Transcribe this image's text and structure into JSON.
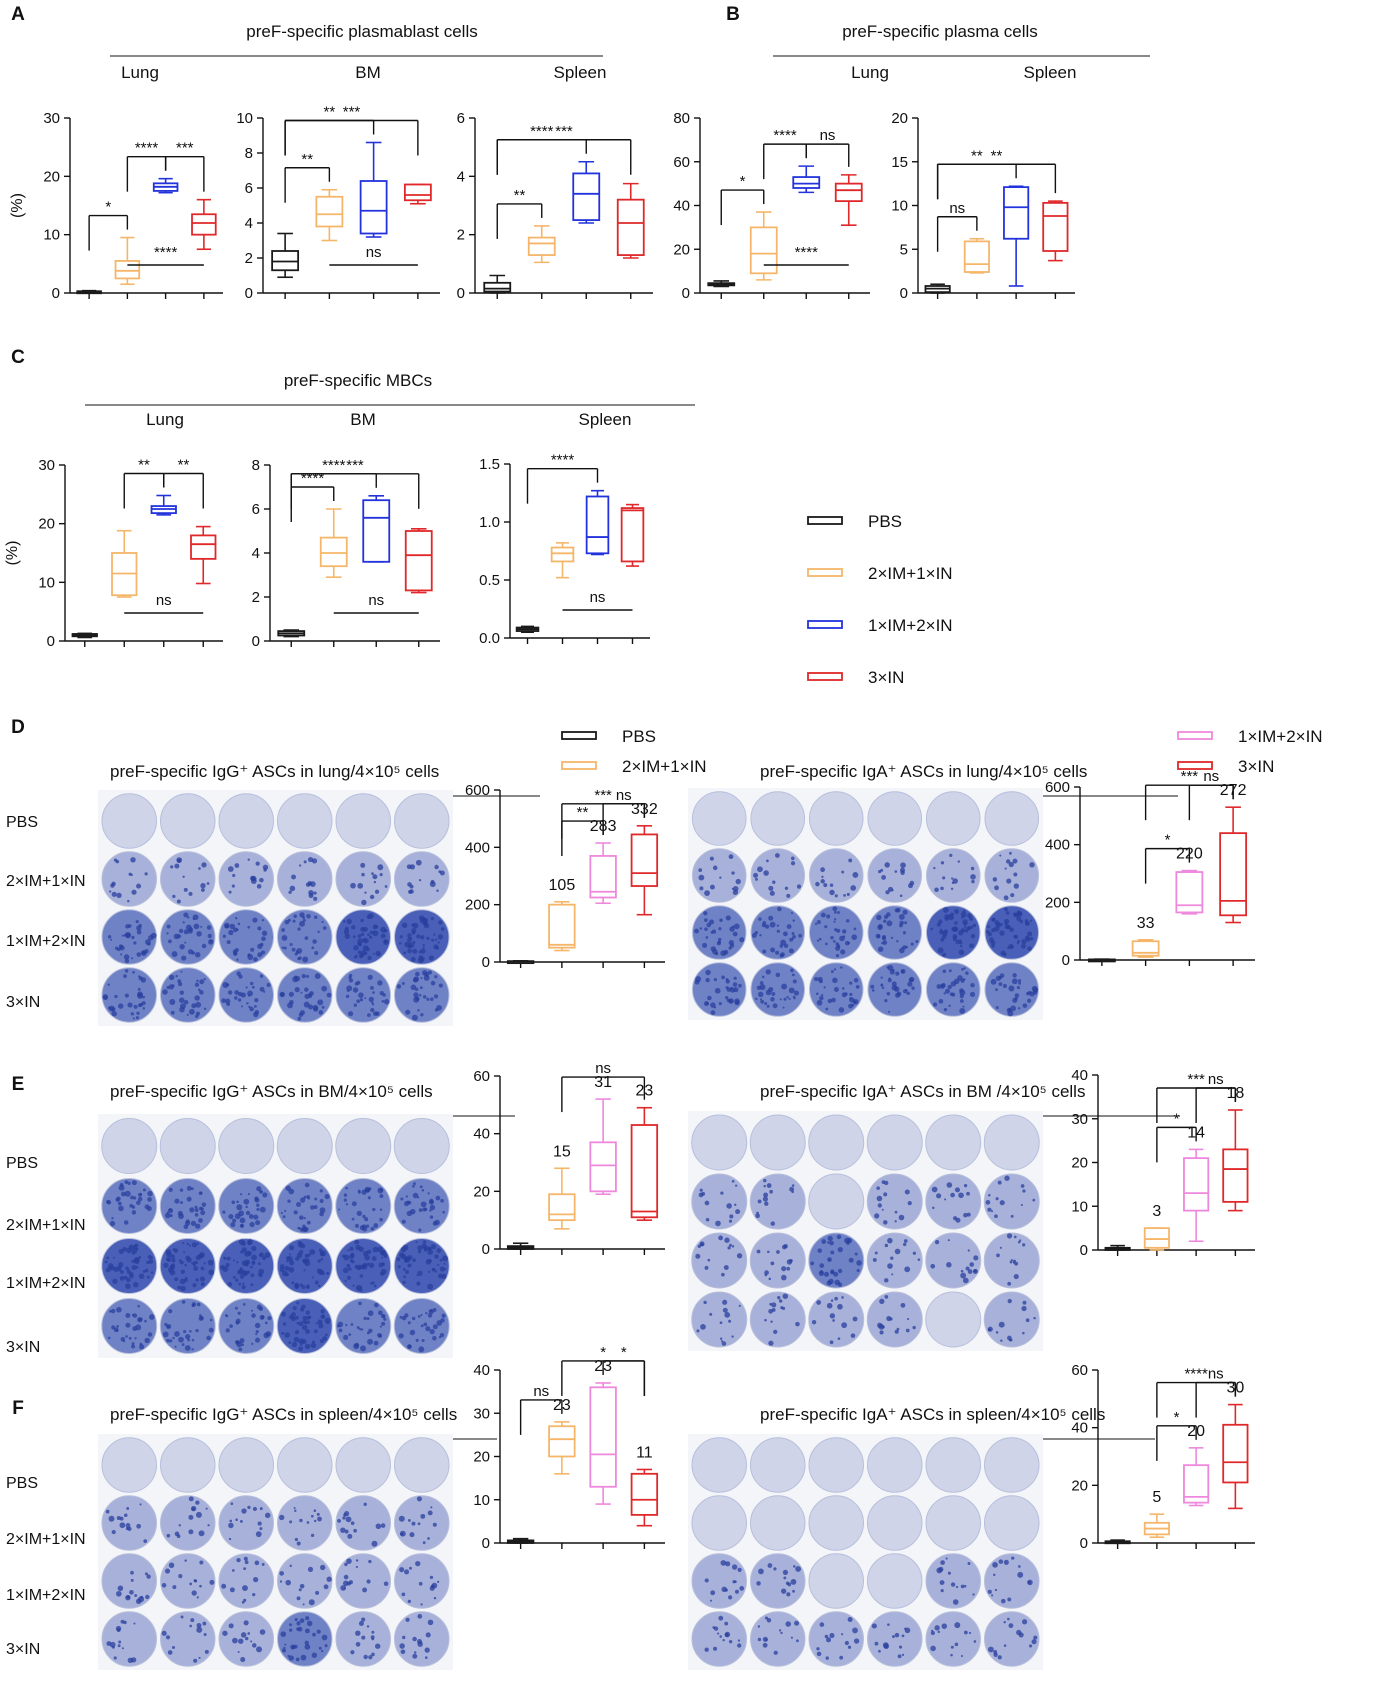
{
  "colors": {
    "PBS": "#1a1a1a",
    "2×IM+1×IN": "#f5b66a",
    "1×IM+2×IN": "#2233dd",
    "3×IN": "#e0282a",
    "1×IM+2×IN (D-F)": "#ee88dd",
    "well_bg": "#d8dcee",
    "well_dark": "#4a60b8"
  },
  "panel_letters": [
    "A",
    "B",
    "C",
    "D",
    "E",
    "F"
  ],
  "headers": {
    "A": "preF-specific plasmablast cells",
    "B": "preF-specific plasma cells",
    "C": "preF-specific MBCs",
    "D_left": "preF-specific IgG⁺ ASCs in lung/4×10⁵ cells",
    "D_right": "preF-specific IgA⁺ ASCs in lung/4×10⁵ cells",
    "E_left": "preF-specific IgG⁺ ASCs in BM/4×10⁵ cells",
    "E_right": "preF-specific IgA⁺ ASCs in BM /4×10⁵ cells",
    "F_left": "preF-specific IgG⁺ ASCs in spleen/4×10⁵ cells",
    "F_right": "preF-specific IgA⁺ ASCs in spleen/4×10⁵ cells"
  },
  "legend_abc": [
    {
      "label": "PBS",
      "color": "#1a1a1a"
    },
    {
      "label": "2×IM+1×IN",
      "color": "#f5b66a"
    },
    {
      "label": "1×IM+2×IN",
      "color": "#2233dd"
    },
    {
      "label": "3×IN",
      "color": "#e0282a"
    }
  ],
  "legend_def": [
    {
      "label": "PBS",
      "color": "#1a1a1a"
    },
    {
      "label": "2×IM+1×IN",
      "color": "#f5b66a"
    },
    {
      "label": "1×IM+2×IN",
      "color": "#ee88dd"
    },
    {
      "label": "3×IN",
      "color": "#e0282a"
    }
  ],
  "row_labels": [
    "PBS",
    "2×IM+1×IN",
    "1×IM+2×IN",
    "3×IN"
  ],
  "chart_data": [
    {
      "id": "A-lung",
      "type": "box",
      "panel": "A",
      "title": "Lung",
      "ylabel": "(%)",
      "ylim": [
        0,
        30
      ],
      "yticks": [
        0,
        10,
        20,
        30
      ],
      "series": [
        {
          "name": "PBS",
          "min": 0.1,
          "q1": 0.1,
          "median": 0.2,
          "q3": 0.3,
          "max": 0.4
        },
        {
          "name": "2×IM+1×IN",
          "min": 1.5,
          "q1": 2.5,
          "median": 3.8,
          "q3": 5.5,
          "max": 9.5
        },
        {
          "name": "1×IM+2×IN",
          "min": 17.2,
          "q1": 17.5,
          "median": 18.2,
          "q3": 18.8,
          "max": 19.6
        },
        {
          "name": "3×IN",
          "min": 7.5,
          "q1": 10,
          "median": 12,
          "q3": 13.5,
          "max": 16
        }
      ],
      "significance": [
        {
          "label": "*",
          "from": 0,
          "to": 1
        },
        {
          "label": "****",
          "from": 1,
          "to": 2
        },
        {
          "label": "***",
          "from": 2,
          "to": 3
        },
        {
          "label": "****",
          "from": 1,
          "to": 3,
          "below": true
        }
      ]
    },
    {
      "id": "A-bm",
      "type": "box",
      "panel": "A",
      "title": "BM",
      "ylabel": "",
      "ylim": [
        0,
        10
      ],
      "yticks": [
        0,
        2,
        4,
        6,
        8,
        10
      ],
      "series": [
        {
          "name": "PBS",
          "min": 0.9,
          "q1": 1.3,
          "median": 1.8,
          "q3": 2.4,
          "max": 3.4
        },
        {
          "name": "2×IM+1×IN",
          "min": 3,
          "q1": 3.8,
          "median": 4.5,
          "q3": 5.5,
          "max": 5.9
        },
        {
          "name": "1×IM+2×IN",
          "min": 3.2,
          "q1": 3.4,
          "median": 4.7,
          "q3": 6.4,
          "max": 8.6
        },
        {
          "name": "3×IN",
          "min": 5.1,
          "q1": 5.3,
          "median": 5.6,
          "q3": 6.2,
          "max": 6.2
        }
      ],
      "significance": [
        {
          "label": "**",
          "from": 0,
          "to": 1
        },
        {
          "label": "**",
          "from": 0,
          "to": 2
        },
        {
          "label": "***",
          "from": 0,
          "to": 3
        },
        {
          "label": "ns",
          "from": 1,
          "to": 3,
          "below": true
        }
      ]
    },
    {
      "id": "A-spleen",
      "type": "box",
      "panel": "A",
      "title": "Spleen",
      "ylabel": "",
      "ylim": [
        0,
        6
      ],
      "yticks": [
        0,
        2,
        4,
        6
      ],
      "series": [
        {
          "name": "PBS",
          "min": 0,
          "q1": 0.05,
          "median": 0.15,
          "q3": 0.35,
          "max": 0.6
        },
        {
          "name": "2×IM+1×IN",
          "min": 1.05,
          "q1": 1.3,
          "median": 1.7,
          "q3": 1.9,
          "max": 2.3
        },
        {
          "name": "1×IM+2×IN",
          "min": 2.4,
          "q1": 2.5,
          "median": 3.4,
          "q3": 4.1,
          "max": 4.5
        },
        {
          "name": "3×IN",
          "min": 1.2,
          "q1": 1.3,
          "median": 2.4,
          "q3": 3.2,
          "max": 3.75
        }
      ],
      "significance": [
        {
          "label": "**",
          "from": 0,
          "to": 1
        },
        {
          "label": "****",
          "from": 0,
          "to": 2
        },
        {
          "label": "***",
          "from": 0,
          "to": 3
        }
      ]
    },
    {
      "id": "B-lung",
      "type": "box",
      "panel": "B",
      "title": "Lung",
      "ylabel": "",
      "ylim": [
        0,
        80
      ],
      "yticks": [
        0,
        20,
        40,
        60,
        80
      ],
      "series": [
        {
          "name": "PBS",
          "min": 3,
          "q1": 3.5,
          "median": 4,
          "q3": 4.5,
          "max": 5.5
        },
        {
          "name": "2×IM+1×IN",
          "min": 6,
          "q1": 9,
          "median": 18,
          "q3": 30,
          "max": 37
        },
        {
          "name": "1×IM+2×IN",
          "min": 46,
          "q1": 48,
          "median": 50,
          "q3": 53,
          "max": 58
        },
        {
          "name": "3×IN",
          "min": 31,
          "q1": 42,
          "median": 47,
          "q3": 50,
          "max": 54
        }
      ],
      "significance": [
        {
          "label": "*",
          "from": 0,
          "to": 1
        },
        {
          "label": "****",
          "from": 1,
          "to": 2
        },
        {
          "label": "ns",
          "from": 2,
          "to": 3
        },
        {
          "label": "****",
          "from": 1,
          "to": 3,
          "below": true
        }
      ]
    },
    {
      "id": "B-spleen",
      "type": "box",
      "panel": "B",
      "title": "Spleen",
      "ylabel": "",
      "ylim": [
        0,
        20
      ],
      "yticks": [
        0,
        5,
        10,
        15,
        20
      ],
      "series": [
        {
          "name": "PBS",
          "min": 0,
          "q1": 0.1,
          "median": 0.5,
          "q3": 0.8,
          "max": 1
        },
        {
          "name": "2×IM+1×IN",
          "min": 2.3,
          "q1": 2.4,
          "median": 3.3,
          "q3": 5.9,
          "max": 6.2
        },
        {
          "name": "1×IM+2×IN",
          "min": 0.8,
          "q1": 6.2,
          "median": 9.8,
          "q3": 12.1,
          "max": 12.2
        },
        {
          "name": "3×IN",
          "min": 3.7,
          "q1": 4.8,
          "median": 8.8,
          "q3": 10.3,
          "max": 10.5
        }
      ],
      "significance": [
        {
          "label": "ns",
          "from": 0,
          "to": 1
        },
        {
          "label": "**",
          "from": 0,
          "to": 2
        },
        {
          "label": "**",
          "from": 0,
          "to": 3
        }
      ]
    },
    {
      "id": "C-lung",
      "type": "box",
      "panel": "C",
      "title": "Lung",
      "ylabel": "(%)",
      "ylim": [
        0,
        30
      ],
      "yticks": [
        0,
        10,
        20,
        30
      ],
      "series": [
        {
          "name": "PBS",
          "min": 0.6,
          "q1": 0.8,
          "median": 1,
          "q3": 1.2,
          "max": 1.3
        },
        {
          "name": "2×IM+1×IN",
          "min": 7.5,
          "q1": 7.8,
          "median": 11.5,
          "q3": 15,
          "max": 18.8
        },
        {
          "name": "1×IM+2×IN",
          "min": 21.5,
          "q1": 21.8,
          "median": 22.5,
          "q3": 23,
          "max": 24.8
        },
        {
          "name": "3×IN",
          "min": 9.8,
          "q1": 14,
          "median": 16.5,
          "q3": 18,
          "max": 19.5
        }
      ],
      "significance": [
        {
          "label": "**",
          "from": 1,
          "to": 2
        },
        {
          "label": "**",
          "from": 2,
          "to": 3
        },
        {
          "label": "ns",
          "from": 1,
          "to": 3,
          "below": true
        }
      ]
    },
    {
      "id": "C-bm",
      "type": "box",
      "panel": "C",
      "title": "BM",
      "ylabel": "",
      "ylim": [
        0,
        8
      ],
      "yticks": [
        0,
        2,
        4,
        6,
        8
      ],
      "series": [
        {
          "name": "PBS",
          "min": 0.2,
          "q1": 0.25,
          "median": 0.35,
          "q3": 0.45,
          "max": 0.5
        },
        {
          "name": "2×IM+1×IN",
          "min": 2.9,
          "q1": 3.4,
          "median": 4,
          "q3": 4.7,
          "max": 6
        },
        {
          "name": "1×IM+2×IN",
          "min": 3.6,
          "q1": 3.6,
          "median": 5.6,
          "q3": 6.4,
          "max": 6.6
        },
        {
          "name": "3×IN",
          "min": 2.2,
          "q1": 2.3,
          "median": 3.9,
          "q3": 5,
          "max": 5.1
        }
      ],
      "significance": [
        {
          "label": "****",
          "from": 0,
          "to": 1
        },
        {
          "label": "****",
          "from": 0,
          "to": 2
        },
        {
          "label": "***",
          "from": 0,
          "to": 3
        },
        {
          "label": "ns",
          "from": 1,
          "to": 3,
          "below": true
        }
      ]
    },
    {
      "id": "C-spleen",
      "type": "box",
      "panel": "C",
      "title": "Spleen",
      "ylabel": "",
      "ylim": [
        0,
        1.5
      ],
      "yticks": [
        "0.0",
        "0.5",
        "1.0",
        "1.5"
      ],
      "series": [
        {
          "name": "PBS",
          "min": 0.05,
          "q1": 0.06,
          "median": 0.075,
          "q3": 0.09,
          "max": 0.1
        },
        {
          "name": "2×IM+1×IN",
          "min": 0.52,
          "q1": 0.66,
          "median": 0.73,
          "q3": 0.78,
          "max": 0.82
        },
        {
          "name": "1×IM+2×IN",
          "min": 0.72,
          "q1": 0.73,
          "median": 0.87,
          "q3": 1.22,
          "max": 1.27
        },
        {
          "name": "3×IN",
          "min": 0.62,
          "q1": 0.66,
          "median": 1.1,
          "q3": 1.12,
          "max": 1.15
        }
      ],
      "significance": [
        {
          "label": "****",
          "from": 0,
          "to": 2
        },
        {
          "label": "ns",
          "from": 1,
          "to": 3,
          "below": true
        }
      ]
    },
    {
      "id": "D-IgG",
      "type": "box",
      "panel": "D",
      "title": "",
      "ylabel": "",
      "ylim": [
        0,
        600
      ],
      "yticks": [
        0,
        200,
        400,
        600
      ],
      "series": [
        {
          "name": "PBS",
          "min": 0,
          "q1": 0,
          "median": 2,
          "q3": 3,
          "max": 4
        },
        {
          "name": "2×IM+1×IN",
          "min": 40,
          "q1": 50,
          "median": 60,
          "q3": 200,
          "max": 210
        },
        {
          "name": "1×IM+2×IN",
          "min": 205,
          "q1": 225,
          "median": 245,
          "q3": 370,
          "max": 415
        },
        {
          "name": "3×IN",
          "min": 165,
          "q1": 265,
          "median": 310,
          "q3": 445,
          "max": 475
        }
      ],
      "means": [
        "",
        "105",
        "283",
        "332"
      ],
      "significance": [
        {
          "label": "**",
          "from": 1,
          "to": 2
        },
        {
          "label": "ns",
          "from": 2,
          "to": 3
        },
        {
          "label": "***",
          "from": 1,
          "to": 3
        }
      ]
    },
    {
      "id": "D-IgA",
      "type": "box",
      "panel": "D",
      "title": "",
      "ylabel": "",
      "ylim": [
        0,
        600
      ],
      "yticks": [
        0,
        200,
        400,
        600
      ],
      "series": [
        {
          "name": "PBS",
          "min": 0,
          "q1": 0,
          "median": 1,
          "q3": 2,
          "max": 3
        },
        {
          "name": "2×IM+1×IN",
          "min": 10,
          "q1": 15,
          "median": 25,
          "q3": 65,
          "max": 70
        },
        {
          "name": "1×IM+2×IN",
          "min": 160,
          "q1": 165,
          "median": 190,
          "q3": 305,
          "max": 310
        },
        {
          "name": "3×IN",
          "min": 130,
          "q1": 155,
          "median": 205,
          "q3": 440,
          "max": 530
        }
      ],
      "means": [
        "",
        "33",
        "220",
        "272"
      ],
      "significance": [
        {
          "label": "*",
          "from": 1,
          "to": 2
        },
        {
          "label": "***",
          "from": 1,
          "to": 3
        },
        {
          "label": "ns",
          "from": 2,
          "to": 3
        }
      ]
    },
    {
      "id": "E-IgG",
      "type": "box",
      "panel": "E",
      "title": "",
      "ylabel": "",
      "ylim": [
        0,
        60
      ],
      "yticks": [
        0,
        20,
        40,
        60
      ],
      "series": [
        {
          "name": "PBS",
          "min": 0,
          "q1": 0,
          "median": 0.5,
          "q3": 1,
          "max": 2
        },
        {
          "name": "2×IM+1×IN",
          "min": 7,
          "q1": 10,
          "median": 12,
          "q3": 19,
          "max": 28
        },
        {
          "name": "1×IM+2×IN",
          "min": 19,
          "q1": 20,
          "median": 29,
          "q3": 37,
          "max": 52
        },
        {
          "name": "3×IN",
          "min": 10,
          "q1": 11,
          "median": 13,
          "q3": 43,
          "max": 49
        }
      ],
      "means": [
        "",
        "15",
        "31",
        "23"
      ],
      "significance": [
        {
          "label": "ns",
          "from": 1,
          "to": 3
        }
      ]
    },
    {
      "id": "E-IgA",
      "type": "box",
      "panel": "E",
      "title": "",
      "ylabel": "",
      "ylim": [
        0,
        40
      ],
      "yticks": [
        0,
        10,
        20,
        30,
        40
      ],
      "series": [
        {
          "name": "PBS",
          "min": 0,
          "q1": 0,
          "median": 0.2,
          "q3": 0.5,
          "max": 1
        },
        {
          "name": "2×IM+1×IN",
          "min": 0,
          "q1": 0.5,
          "median": 2.5,
          "q3": 5,
          "max": 5
        },
        {
          "name": "1×IM+2×IN",
          "min": 2,
          "q1": 9,
          "median": 13,
          "q3": 21,
          "max": 23
        },
        {
          "name": "3×IN",
          "min": 9,
          "q1": 11,
          "median": 18.5,
          "q3": 23,
          "max": 32
        }
      ],
      "means": [
        "",
        "3",
        "14",
        "18"
      ],
      "significance": [
        {
          "label": "*",
          "from": 1,
          "to": 2
        },
        {
          "label": "***",
          "from": 1,
          "to": 3
        },
        {
          "label": "ns",
          "from": 2,
          "to": 3
        }
      ]
    },
    {
      "id": "F-IgG",
      "type": "box",
      "panel": "F",
      "title": "",
      "ylabel": "",
      "ylim": [
        0,
        40
      ],
      "yticks": [
        0,
        10,
        20,
        30,
        40
      ],
      "series": [
        {
          "name": "PBS",
          "min": 0,
          "q1": 0,
          "median": 0.3,
          "q3": 0.6,
          "max": 1
        },
        {
          "name": "2×IM+1×IN",
          "min": 16,
          "q1": 20,
          "median": 24,
          "q3": 27,
          "max": 28
        },
        {
          "name": "1×IM+2×IN",
          "min": 9,
          "q1": 13,
          "median": 20.5,
          "q3": 36,
          "max": 37
        },
        {
          "name": "3×IN",
          "min": 4,
          "q1": 6.5,
          "median": 10,
          "q3": 16,
          "max": 17
        }
      ],
      "means": [
        "",
        "23",
        "23",
        "11"
      ],
      "significance": [
        {
          "label": "ns",
          "from": 0,
          "to": 1
        },
        {
          "label": "*",
          "from": 2,
          "to": 3
        },
        {
          "label": "*",
          "from": 1,
          "to": 3
        }
      ]
    },
    {
      "id": "F-IgA",
      "type": "box",
      "panel": "F",
      "title": "",
      "ylabel": "",
      "ylim": [
        0,
        60
      ],
      "yticks": [
        0,
        20,
        40,
        60
      ],
      "series": [
        {
          "name": "PBS",
          "min": 0,
          "q1": 0,
          "median": 0.3,
          "q3": 0.6,
          "max": 1
        },
        {
          "name": "2×IM+1×IN",
          "min": 2,
          "q1": 3,
          "median": 5,
          "q3": 7,
          "max": 10
        },
        {
          "name": "1×IM+2×IN",
          "min": 13,
          "q1": 14,
          "median": 16,
          "q3": 27,
          "max": 33
        },
        {
          "name": "3×IN",
          "min": 12,
          "q1": 21,
          "median": 28,
          "q3": 41,
          "max": 48
        }
      ],
      "means": [
        "",
        "5",
        "20",
        "30"
      ],
      "significance": [
        {
          "label": "*",
          "from": 1,
          "to": 2
        },
        {
          "label": "****",
          "from": 1,
          "to": 3
        },
        {
          "label": "ns",
          "from": 2,
          "to": 3
        }
      ]
    }
  ]
}
